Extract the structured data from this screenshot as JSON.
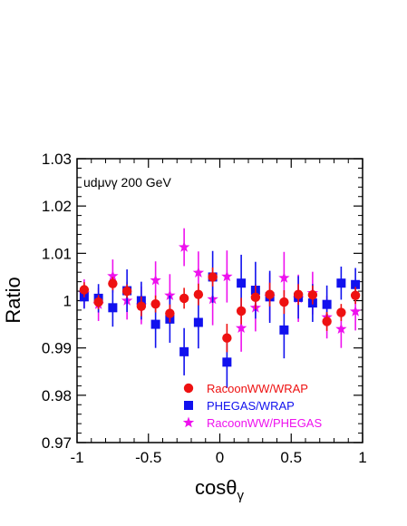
{
  "chart_data": {
    "type": "scatter",
    "annotation": "udμνγ  200 GeV",
    "xlabel_main": "cosθ",
    "xlabel_sub": "γ",
    "ylabel": "Ratio",
    "xlim": [
      -1,
      1
    ],
    "ylim": [
      0.97,
      1.03
    ],
    "x_ticks": [
      -1,
      -0.5,
      0,
      0.5,
      1
    ],
    "x_tick_labels": [
      "-1",
      "-0.5",
      "0",
      "0.5",
      "1"
    ],
    "y_ticks": [
      0.97,
      0.98,
      0.99,
      1.0,
      1.01,
      1.02,
      1.03
    ],
    "y_tick_labels": [
      "0.97",
      "0.98",
      "0.99",
      "1",
      "1.01",
      "1.02",
      "1.03"
    ],
    "grid": false,
    "legend_position": "bottom-right",
    "series": [
      {
        "name": "RacoonWW/WRAP",
        "marker": "circle",
        "color": "#ee1111",
        "x": [
          -0.95,
          -0.85,
          -0.75,
          -0.65,
          -0.55,
          -0.45,
          -0.35,
          -0.25,
          -0.15,
          -0.05,
          0.05,
          0.15,
          0.25,
          0.35,
          0.45,
          0.55,
          0.65,
          0.75,
          0.85,
          0.95
        ],
        "y": [
          1.0023,
          0.9997,
          1.0036,
          1.002,
          0.9988,
          0.9993,
          0.9973,
          1.0005,
          1.0013,
          1.005,
          0.9921,
          0.9978,
          1.0007,
          1.0013,
          0.9997,
          1.0013,
          1.0012,
          0.9956,
          0.9975,
          1.0011
        ],
        "err": [
          0.0016,
          0.0015,
          0.0014,
          0.0014,
          0.0021,
          0.0018,
          0.0019,
          0.0022,
          0.0023,
          0.002,
          0.003,
          0.0028,
          0.0025,
          0.0025,
          0.0025,
          0.0022,
          0.002,
          0.002,
          0.0018,
          0.0018
        ]
      },
      {
        "name": "PHEGAS/WRAP",
        "marker": "square",
        "color": "#1111ee",
        "x": [
          -0.95,
          -0.85,
          -0.75,
          -0.65,
          -0.55,
          -0.45,
          -0.35,
          -0.25,
          -0.15,
          -0.05,
          0.05,
          0.15,
          0.25,
          0.35,
          0.45,
          0.55,
          0.65,
          0.75,
          0.85,
          0.95
        ],
        "y": [
          1.0008,
          1.0005,
          0.9985,
          1.0021,
          1.0,
          0.995,
          0.9961,
          0.9892,
          0.9954,
          1.005,
          0.987,
          1.0037,
          1.0022,
          1.0008,
          0.9938,
          1.0007,
          0.9995,
          0.9992,
          1.0037,
          1.0034
        ],
        "err": [
          0.0025,
          0.003,
          0.004,
          0.0045,
          0.004,
          0.005,
          0.005,
          0.005,
          0.0055,
          0.0055,
          0.0055,
          0.006,
          0.006,
          0.0055,
          0.006,
          0.0045,
          0.004,
          0.004,
          0.0035,
          0.0035
        ]
      },
      {
        "name": "RacoonWW/PHEGAS",
        "marker": "star",
        "color": "#ee11ee",
        "x": [
          -0.95,
          -0.85,
          -0.75,
          -0.65,
          -0.55,
          -0.45,
          -0.35,
          -0.25,
          -0.15,
          -0.05,
          0.05,
          0.15,
          0.25,
          0.35,
          0.45,
          0.55,
          0.65,
          0.75,
          0.85,
          0.95
        ],
        "y": [
          1.0015,
          0.9992,
          1.0052,
          1.0,
          0.999,
          1.0043,
          1.0011,
          1.0113,
          1.0059,
          1.0003,
          1.0051,
          0.9942,
          0.9985,
          1.0008,
          1.0048,
          1.0005,
          1.0016,
          0.9965,
          0.994,
          0.9977
        ],
        "err": [
          0.003,
          0.0035,
          0.0035,
          0.004,
          0.004,
          0.004,
          0.0045,
          0.004,
          0.0045,
          0.0055,
          0.0055,
          0.005,
          0.005,
          0.005,
          0.0055,
          0.005,
          0.0045,
          0.0045,
          0.004,
          0.004
        ]
      }
    ]
  }
}
